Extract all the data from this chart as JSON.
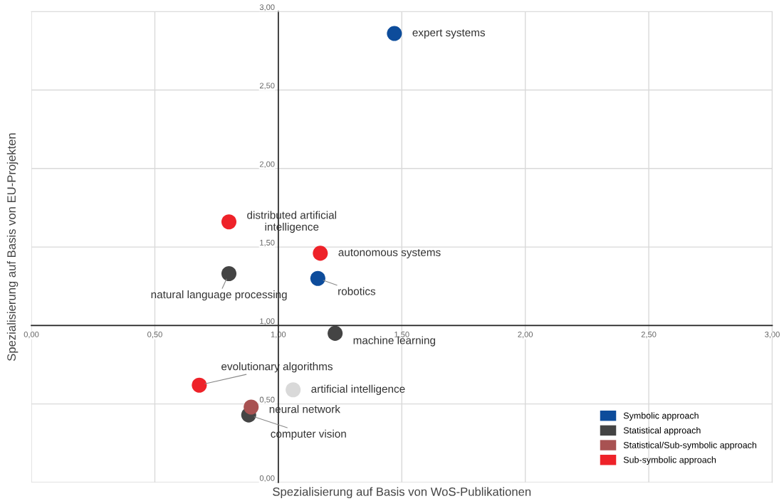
{
  "chart_data": {
    "type": "scatter",
    "xlabel": "Spezialisierung auf Basis von WoS-Publikationen",
    "ylabel": "Spezialisierung auf Basis von EU-Projekten",
    "xlim": [
      0,
      3
    ],
    "ylim": [
      0,
      3
    ],
    "xticks": [
      {
        "value": 0,
        "label": "0,00"
      },
      {
        "value": 0.5,
        "label": "0,50"
      },
      {
        "value": 1,
        "label": "1,00"
      },
      {
        "value": 1.5,
        "label": "1,50"
      },
      {
        "value": 2,
        "label": "2,00"
      },
      {
        "value": 2.5,
        "label": "2,50"
      },
      {
        "value": 3,
        "label": "3,00"
      }
    ],
    "yticks": [
      {
        "value": 0,
        "label": "0,00"
      },
      {
        "value": 0.5,
        "label": "0,50"
      },
      {
        "value": 1,
        "label": "1,00"
      },
      {
        "value": 1.5,
        "label": "1,50"
      },
      {
        "value": 2,
        "label": "2,00"
      },
      {
        "value": 2.5,
        "label": "2,50"
      },
      {
        "value": 3,
        "label": "3,00"
      }
    ],
    "grid": true,
    "legend": "bottom right",
    "marker": "circle",
    "series": [
      {
        "name": "Symbolic approach",
        "color": "#0d4c9b",
        "x": [
          1.47,
          1.16
        ],
        "values": [
          2.86,
          1.3
        ]
      },
      {
        "name": "Statistical approach",
        "color": "#444444",
        "x": [
          0.8,
          1.23,
          0.88
        ],
        "values": [
          1.33,
          0.95,
          0.43
        ]
      },
      {
        "name": "Statistical/Sub-symbolic approach",
        "color": "#a85252",
        "x": [
          0.89
        ],
        "values": [
          0.48
        ]
      },
      {
        "name": "Sub-symbolic approach",
        "color": "#ee2229",
        "x": [
          0.8,
          1.17,
          0.68
        ],
        "values": [
          1.66,
          1.46,
          0.62
        ]
      },
      {
        "color": "#d9d9d9",
        "x": [
          1.06
        ],
        "values": [
          0.59
        ]
      }
    ],
    "annotations": [
      {
        "text": "expert systems",
        "x": 1.47,
        "y": 2.86
      },
      {
        "text": "distributed artificial\nintelligence",
        "x": 0.8,
        "y": 1.66
      },
      {
        "text": "autonomous systems",
        "x": 1.17,
        "y": 1.46
      },
      {
        "text": "natural language processing",
        "x": 0.8,
        "y": 1.33
      },
      {
        "text": "robotics",
        "x": 1.16,
        "y": 1.3
      },
      {
        "text": "machine learning",
        "x": 1.23,
        "y": 0.95
      },
      {
        "text": "evolutionary algorithms",
        "x": 0.68,
        "y": 0.62
      },
      {
        "text": "artificial intelligence",
        "x": 1.06,
        "y": 0.59
      },
      {
        "text": "neural network",
        "x": 0.89,
        "y": 0.48
      },
      {
        "text": "computer vision",
        "x": 0.88,
        "y": 0.43
      }
    ]
  }
}
